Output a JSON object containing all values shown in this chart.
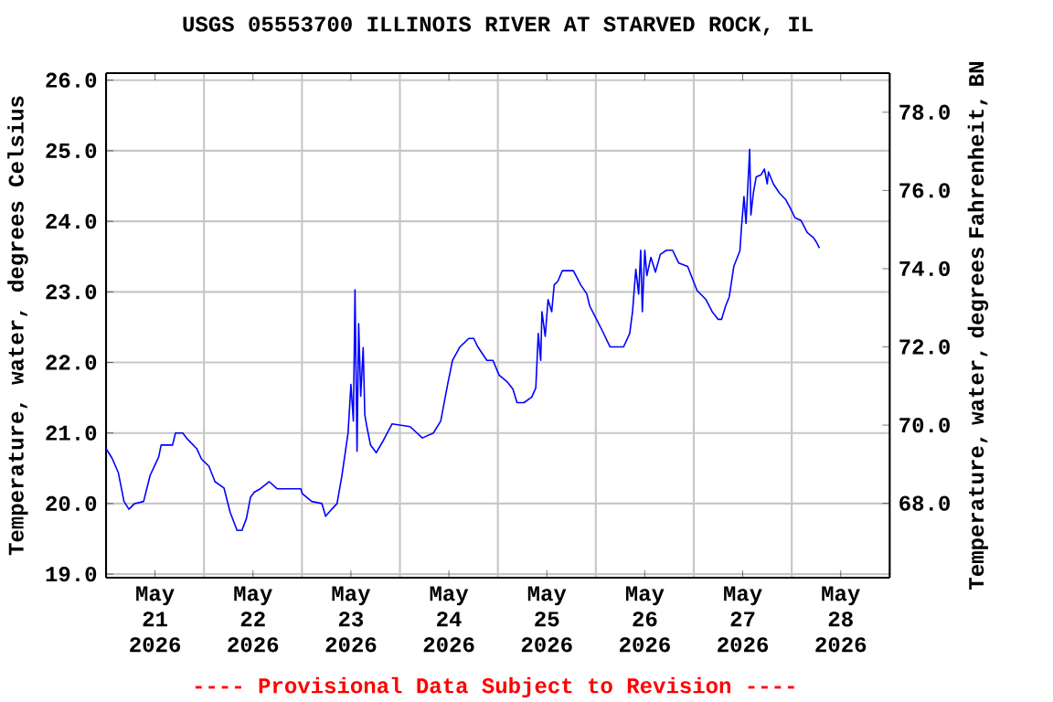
{
  "chart_data": {
    "type": "line",
    "title": "USGS 05553700 ILLINOIS RIVER AT STARVED ROCK, IL",
    "ylabel": "Temperature, water, degrees Celsius",
    "y2label": "Temperature, water, degrees Fahrenheit, BN",
    "annotations": [
      "---- Provisional Data Subject to Revision ----"
    ],
    "x": [
      "2026-05-21T00:00",
      "2026-05-21T01:30",
      "2026-05-21T03:00",
      "2026-05-21T04:24",
      "2026-05-21T05:36",
      "2026-05-21T07:00",
      "2026-05-21T09:12",
      "2026-05-21T10:48",
      "2026-05-21T12:54",
      "2026-05-21T13:30",
      "2026-05-21T16:18",
      "2026-05-21T17:00",
      "2026-05-21T18:48",
      "2026-05-21T20:00",
      "2026-05-21T22:12",
      "2026-05-21T23:24",
      "2026-05-22T01:12",
      "2026-05-22T02:42",
      "2026-05-22T04:54",
      "2026-05-22T06:24",
      "2026-05-22T08:06",
      "2026-05-22T09:18",
      "2026-05-22T10:24",
      "2026-05-22T11:24",
      "2026-05-22T12:18",
      "2026-05-22T13:48",
      "2026-05-22T16:00",
      "2026-05-22T17:54",
      "2026-05-22T23:42",
      "2026-05-23T00:06",
      "2026-05-23T02:24",
      "2026-05-23T04:54",
      "2026-05-23T05:48",
      "2026-05-23T07:18",
      "2026-05-23T08:36",
      "2026-05-23T09:48",
      "2026-05-23T11:18",
      "2026-05-23T12:00",
      "2026-05-23T12:36",
      "2026-05-23T13:00",
      "2026-05-23T13:30",
      "2026-05-23T13:54",
      "2026-05-23T14:24",
      "2026-05-23T15:00",
      "2026-05-23T15:24",
      "2026-05-23T15:54",
      "2026-05-23T16:48",
      "2026-05-23T18:12",
      "2026-05-23T19:42",
      "2026-05-23T22:06",
      "2026-05-24T02:30",
      "2026-05-24T05:30",
      "2026-05-24T08:12",
      "2026-05-24T10:00",
      "2026-05-24T11:42",
      "2026-05-24T12:54",
      "2026-05-24T14:42",
      "2026-05-24T16:54",
      "2026-05-24T18:06",
      "2026-05-24T19:06",
      "2026-05-24T21:18",
      "2026-05-24T22:48",
      "2026-05-25T00:18",
      "2026-05-25T02:12",
      "2026-05-25T03:42",
      "2026-05-25T04:42",
      "2026-05-25T06:24",
      "2026-05-25T08:18",
      "2026-05-25T09:18",
      "2026-05-25T09:54",
      "2026-05-25T10:30",
      "2026-05-25T10:48",
      "2026-05-25T11:36",
      "2026-05-25T12:18",
      "2026-05-25T13:12",
      "2026-05-25T13:48",
      "2026-05-25T14:42",
      "2026-05-25T15:48",
      "2026-05-25T18:30",
      "2026-05-25T20:18",
      "2026-05-25T21:48",
      "2026-05-25T22:30",
      "2026-05-26T00:00",
      "2026-05-26T01:30",
      "2026-05-26T03:30",
      "2026-05-26T06:48",
      "2026-05-26T08:18",
      "2026-05-26T09:00",
      "2026-05-26T09:48",
      "2026-05-26T10:30",
      "2026-05-26T11:00",
      "2026-05-26T11:24",
      "2026-05-26T12:00",
      "2026-05-26T12:30",
      "2026-05-26T13:30",
      "2026-05-26T14:36",
      "2026-05-26T15:48",
      "2026-05-26T17:18",
      "2026-05-26T18:48",
      "2026-05-26T20:18",
      "2026-05-26T22:30",
      "2026-05-27T00:48",
      "2026-05-27T03:00",
      "2026-05-27T04:30",
      "2026-05-27T06:00",
      "2026-05-27T06:48",
      "2026-05-27T07:48",
      "2026-05-27T08:42",
      "2026-05-27T09:48",
      "2026-05-27T11:18",
      "2026-05-27T11:42",
      "2026-05-27T12:18",
      "2026-05-27T12:48",
      "2026-05-27T13:12",
      "2026-05-27T13:42",
      "2026-05-27T14:00",
      "2026-05-27T14:36",
      "2026-05-27T15:18",
      "2026-05-27T16:30",
      "2026-05-27T17:18",
      "2026-05-27T18:00",
      "2026-05-27T18:18",
      "2026-05-27T19:30",
      "2026-05-27T21:00",
      "2026-05-27T22:30",
      "2026-05-27T23:42",
      "2026-05-28T00:48",
      "2026-05-28T02:18",
      "2026-05-28T03:48",
      "2026-05-28T05:18",
      "2026-05-28T06:00",
      "2026-05-28T06:48"
    ],
    "series": [
      {
        "color": "#0000ff",
        "values": [
          20.78,
          20.64,
          20.44,
          20.03,
          19.92,
          20.0,
          20.03,
          20.4,
          20.66,
          20.83,
          20.83,
          21.0,
          21.0,
          20.91,
          20.78,
          20.63,
          20.53,
          20.31,
          20.22,
          19.88,
          19.62,
          19.62,
          19.79,
          20.09,
          20.16,
          20.21,
          20.31,
          20.21,
          20.21,
          20.14,
          20.03,
          20.0,
          19.82,
          19.92,
          20.0,
          20.4,
          21.0,
          21.69,
          21.17,
          23.03,
          20.74,
          22.55,
          21.52,
          22.21,
          21.26,
          21.09,
          20.83,
          20.72,
          20.87,
          21.13,
          21.09,
          20.93,
          21.0,
          21.17,
          21.69,
          22.03,
          22.22,
          22.34,
          22.34,
          22.22,
          22.03,
          22.03,
          21.82,
          21.73,
          21.62,
          21.43,
          21.43,
          21.51,
          21.64,
          22.41,
          22.03,
          22.72,
          22.37,
          22.89,
          22.72,
          23.1,
          23.15,
          23.3,
          23.3,
          23.1,
          22.97,
          22.8,
          22.63,
          22.46,
          22.22,
          22.22,
          22.41,
          22.72,
          23.32,
          22.97,
          23.59,
          22.72,
          23.59,
          23.23,
          23.49,
          23.28,
          23.53,
          23.59,
          23.59,
          23.41,
          23.36,
          23.02,
          22.89,
          22.72,
          22.61,
          22.61,
          22.8,
          22.93,
          23.36,
          23.58,
          23.92,
          24.35,
          23.97,
          24.44,
          25.02,
          24.09,
          24.4,
          24.63,
          24.66,
          24.74,
          24.53,
          24.7,
          24.53,
          24.4,
          24.31,
          24.18,
          24.05,
          24.01,
          23.84,
          23.77,
          23.71,
          23.62
        ]
      }
    ],
    "xlim": [
      "2026-05-21T00:00",
      "2026-05-29T00:00"
    ],
    "xticks": [
      {
        "value": "2026-05-21T12:00",
        "label": "May 21 2026"
      },
      {
        "value": "2026-05-22T00:00",
        "label": null
      },
      {
        "value": "2026-05-22T12:00",
        "label": "May 22 2026"
      },
      {
        "value": "2026-05-23T00:00",
        "label": null
      },
      {
        "value": "2026-05-23T12:00",
        "label": "May 23 2026"
      },
      {
        "value": "2026-05-24T00:00",
        "label": null
      },
      {
        "value": "2026-05-24T12:00",
        "label": "May 24 2026"
      },
      {
        "value": "2026-05-25T00:00",
        "label": null
      },
      {
        "value": "2026-05-25T12:00",
        "label": "May 25 2026"
      },
      {
        "value": "2026-05-26T00:00",
        "label": null
      },
      {
        "value": "2026-05-26T12:00",
        "label": "May 26 2026"
      },
      {
        "value": "2026-05-27T00:00",
        "label": null
      },
      {
        "value": "2026-05-27T12:00",
        "label": "May 27 2026"
      },
      {
        "value": "2026-05-28T00:00",
        "label": null
      },
      {
        "value": "2026-05-28T12:00",
        "label": "May 28 2026"
      }
    ],
    "ylim": [
      18.95,
      26.1
    ],
    "yticks": [
      {
        "value": 19,
        "label": "19.0"
      },
      {
        "value": 20,
        "label": "20.0"
      },
      {
        "value": 21,
        "label": "21.0"
      },
      {
        "value": 22,
        "label": "22.0"
      },
      {
        "value": 23,
        "label": "23.0"
      },
      {
        "value": 24,
        "label": "24.0"
      },
      {
        "value": 25,
        "label": "25.0"
      },
      {
        "value": 26,
        "label": "26.0"
      }
    ],
    "y2lim": [
      66.1,
      79.0
    ],
    "y2ticks": [
      {
        "value": 68,
        "label": "68.0"
      },
      {
        "value": 70,
        "label": "70.0"
      },
      {
        "value": 72,
        "label": "72.0"
      },
      {
        "value": 74,
        "label": "74.0"
      },
      {
        "value": 76,
        "label": "76.0"
      },
      {
        "value": 78,
        "label": "78.0"
      }
    ],
    "grid": true,
    "marker": "none",
    "line_style": "solid"
  }
}
